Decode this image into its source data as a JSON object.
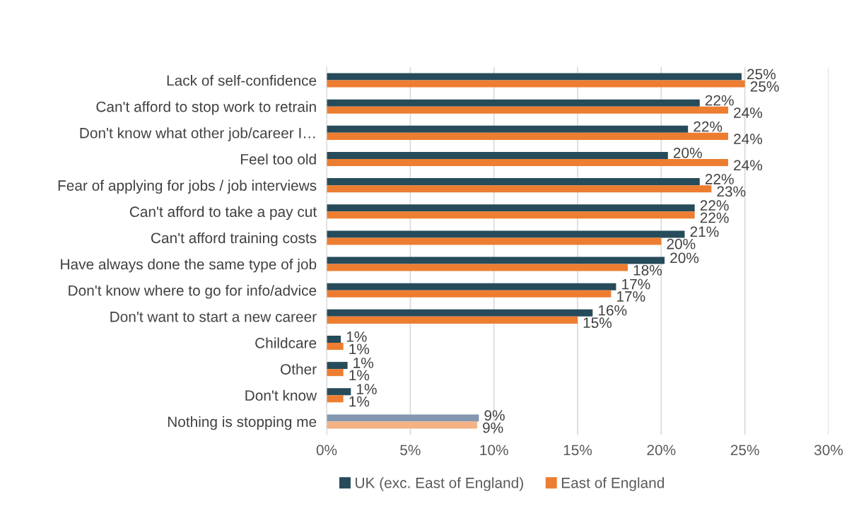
{
  "chart_data": {
    "type": "bar",
    "orientation": "horizontal",
    "categories": [
      "Lack of self-confidence",
      "Can't afford to stop work to retrain",
      "Don't know what other job/career I…",
      "Feel too old",
      "Fear of applying for jobs / job interviews",
      "Can't afford to take a pay cut",
      "Can't afford training costs",
      "Have always done the same type of job",
      "Don't know where to go for info/advice",
      "Don't want to start a new career",
      "Childcare",
      "Other",
      "Don't know",
      "Nothing is stopping me"
    ],
    "series": [
      {
        "name": "UK (exc. East of England)",
        "color": "#264b5a",
        "colors": [
          "#264b5a",
          "#264b5a",
          "#264b5a",
          "#264b5a",
          "#264b5a",
          "#264b5a",
          "#264b5a",
          "#264b5a",
          "#264b5a",
          "#264b5a",
          "#264b5a",
          "#264b5a",
          "#264b5a",
          "#8497b0"
        ],
        "values": [
          24.8,
          22.3,
          21.6,
          20.4,
          22.3,
          22.0,
          21.4,
          20.2,
          17.3,
          15.9,
          0.85,
          1.25,
          1.45,
          9.1
        ],
        "value_labels": [
          "25%",
          "22%",
          "22%",
          "20%",
          "22%",
          "22%",
          "21%",
          "20%",
          "17%",
          "16%",
          "1%",
          "1%",
          "1%",
          "9%"
        ]
      },
      {
        "name": "East of England",
        "color": "#ed7d31",
        "colors": [
          "#ed7d31",
          "#ed7d31",
          "#ed7d31",
          "#ed7d31",
          "#ed7d31",
          "#ed7d31",
          "#ed7d31",
          "#ed7d31",
          "#ed7d31",
          "#ed7d31",
          "#ed7d31",
          "#ed7d31",
          "#ed7d31",
          "#f4b183"
        ],
        "values": [
          25.0,
          24.0,
          24.0,
          24.0,
          23.0,
          22.0,
          20.0,
          18.0,
          17.0,
          15.0,
          1.0,
          1.0,
          1.0,
          9.0
        ],
        "value_labels": [
          "25%",
          "24%",
          "24%",
          "24%",
          "23%",
          "22%",
          "20%",
          "18%",
          "17%",
          "15%",
          "1%",
          "1%",
          "1%",
          "9%"
        ]
      }
    ],
    "xlim": [
      0,
      30
    ],
    "xticks": [
      {
        "value": 0,
        "label": "0%"
      },
      {
        "value": 5,
        "label": "5%"
      },
      {
        "value": 10,
        "label": "10%"
      },
      {
        "value": 15,
        "label": "15%"
      },
      {
        "value": 20,
        "label": "20%"
      },
      {
        "value": 25,
        "label": "25%"
      },
      {
        "value": 30,
        "label": "30%"
      }
    ],
    "grid": "x",
    "legend": "bottom"
  }
}
